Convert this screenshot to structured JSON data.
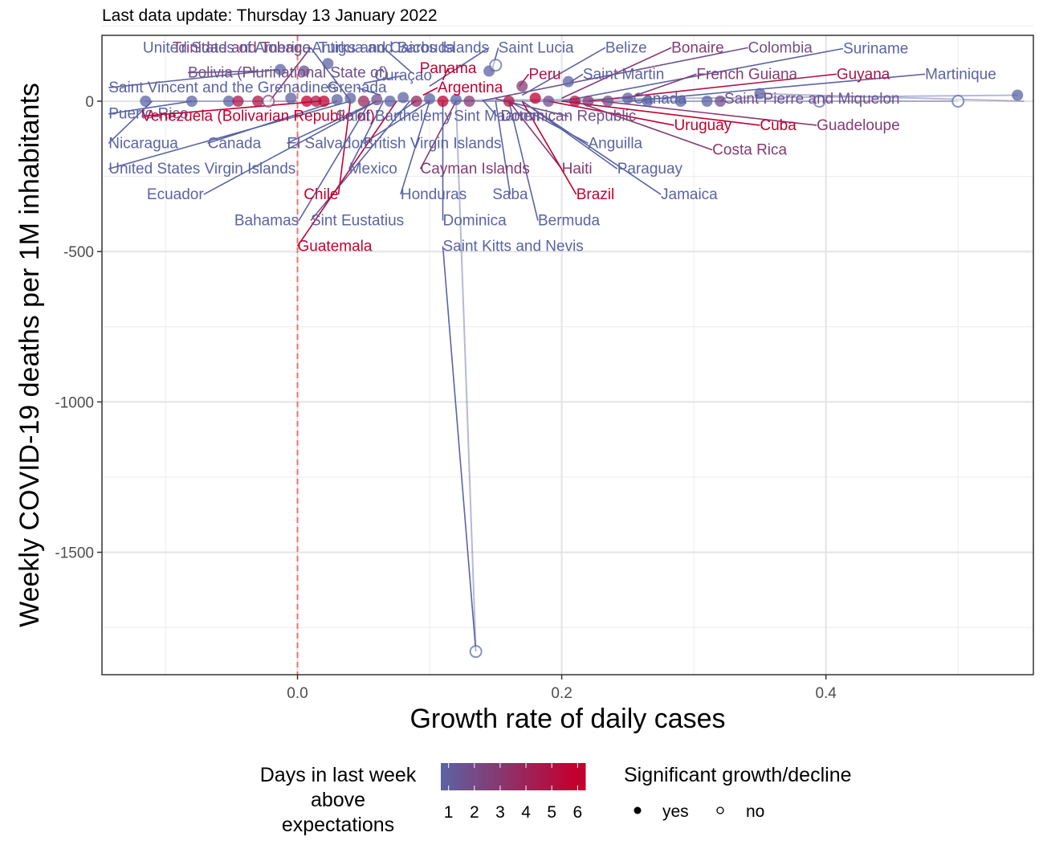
{
  "subtitle": "Last data update: Thursday 13 January 2022",
  "chart_data": {
    "type": "scatter",
    "xlabel": "Growth rate of daily cases",
    "ylabel": "Weekly COVID-19 deaths per 1M inhabitants",
    "xlim": [
      -0.148,
      0.557
    ],
    "ylim": [
      -1907,
      219
    ],
    "x_ticks": [
      0.0,
      0.2,
      0.4
    ],
    "x_tick_labels": [
      "0.0",
      "0.2",
      "0.4"
    ],
    "y_ticks": [
      0,
      -500,
      -1000,
      -1500
    ],
    "y_tick_labels": [
      "0",
      "-500",
      "-1000",
      "-1500"
    ],
    "reference_line_x": 0,
    "grid": true,
    "colors": {
      "low": "#5b63a3",
      "high": "#c20030",
      "refline": "#e8736b",
      "grid": "#ebebeb",
      "panel_border": "#333333"
    },
    "legend": {
      "color_title": [
        "Days in last week",
        "above",
        "expectations"
      ],
      "color_labels": [
        "1",
        "2",
        "3",
        "4",
        "5",
        "6"
      ],
      "shape_title": "Significant growth/decline",
      "shape_labels": [
        "yes",
        "no"
      ],
      "position": "bottom"
    },
    "points": [
      {
        "name": "Trinidad and Tobago",
        "x": -0.021,
        "y": 0,
        "days": 3,
        "sig": false,
        "lx": 0.01,
        "ly": 178,
        "anchor": "end"
      },
      {
        "name": "United States of America",
        "x": 0.04,
        "y": 2,
        "days": 1,
        "sig": true,
        "lx": 0.01,
        "ly": 178,
        "anchor": "end"
      },
      {
        "name": "Antigua and Barbuda",
        "x": 0.087,
        "y": 93,
        "days": 1,
        "sig": false,
        "lx": 0.065,
        "ly": 178,
        "anchor": "middle"
      },
      {
        "name": "Turks and Caicos Islands",
        "x": 0.1,
        "y": 50,
        "days": 1,
        "sig": false,
        "lx": 0.145,
        "ly": 178,
        "anchor": "end"
      },
      {
        "name": "Saint Lucia",
        "x": 0.147,
        "y": 100,
        "days": 1,
        "sig": true,
        "lx": 0.152,
        "ly": 178,
        "anchor": "start"
      },
      {
        "name": "Belize",
        "x": 0.17,
        "y": 20,
        "days": 1,
        "sig": true,
        "lx": 0.233,
        "ly": 178,
        "anchor": "start"
      },
      {
        "name": "Bonaire",
        "x": 0.2,
        "y": 10,
        "days": 3,
        "sig": false,
        "lx": 0.283,
        "ly": 178,
        "anchor": "start"
      },
      {
        "name": "Colombia",
        "x": 0.14,
        "y": 2,
        "days": 2,
        "sig": true,
        "lx": 0.341,
        "ly": 178,
        "anchor": "start"
      },
      {
        "name": "Suriname",
        "x": 0.2,
        "y": 0,
        "days": 1,
        "sig": true,
        "lx": 0.413,
        "ly": 175,
        "anchor": "start"
      },
      {
        "name": "Bolivia (Plurinational State of)",
        "x": -0.03,
        "y": 100,
        "days": 2,
        "sig": false,
        "lx": -0.083,
        "ly": 95,
        "anchor": "start"
      },
      {
        "name": "Curaçao",
        "x": 0.05,
        "y": 60,
        "days": 1,
        "sig": true,
        "lx": 0.08,
        "ly": 85,
        "anchor": "middle"
      },
      {
        "name": "Panama",
        "x": 0.11,
        "y": 70,
        "days": 6,
        "sig": true,
        "lx": 0.114,
        "ly": 110,
        "anchor": "middle"
      },
      {
        "name": "Peru",
        "x": 0.168,
        "y": 50,
        "days": 5,
        "sig": true,
        "lx": 0.175,
        "ly": 90,
        "anchor": "start"
      },
      {
        "name": "Saint Martin",
        "x": 0.207,
        "y": 65,
        "days": 1,
        "sig": true,
        "lx": 0.216,
        "ly": 90,
        "anchor": "start"
      },
      {
        "name": "French Guiana",
        "x": 0.25,
        "y": 10,
        "days": 3,
        "sig": true,
        "lx": 0.302,
        "ly": 90,
        "anchor": "start"
      },
      {
        "name": "Guyana",
        "x": 0.22,
        "y": 0,
        "days": 5,
        "sig": true,
        "lx": 0.408,
        "ly": 90,
        "anchor": "start"
      },
      {
        "name": "Martinique",
        "x": 0.25,
        "y": 0,
        "days": 1,
        "sig": true,
        "lx": 0.475,
        "ly": 90,
        "anchor": "start"
      },
      {
        "name": "Saint Vincent and the Grenadines",
        "x": -0.015,
        "y": 105,
        "days": 1,
        "sig": true,
        "lx": -0.143,
        "ly": 45,
        "anchor": "start"
      },
      {
        "name": "Grenada",
        "x": 0.063,
        "y": 20,
        "days": 1,
        "sig": true,
        "lx": 0.045,
        "ly": 45,
        "anchor": "middle"
      },
      {
        "name": "Argentina",
        "x": 0.095,
        "y": 20,
        "days": 6,
        "sig": true,
        "lx": 0.106,
        "ly": 45,
        "anchor": "start"
      },
      {
        "name": "Canada",
        "x": 0.243,
        "y": 12,
        "days": 1,
        "sig": true,
        "lx": 0.254,
        "ly": 8,
        "anchor": "start"
      },
      {
        "name": "Saint Pierre and Miquelon",
        "x": 0.32,
        "y": 0,
        "days": 2,
        "sig": true,
        "lx": 0.323,
        "ly": 8,
        "anchor": "start"
      },
      {
        "name": "Puerto Rico",
        "x": -0.08,
        "y": 0,
        "days": 1,
        "sig": true,
        "lx": -0.143,
        "ly": -42,
        "anchor": "start"
      },
      {
        "name": "Venezuela (Bolivarian Republic of)",
        "x": 0.017,
        "y": 0,
        "days": 6,
        "sig": true,
        "lx": -0.118,
        "ly": -50,
        "anchor": "start"
      },
      {
        "name": "Saint Barthélemy",
        "x": 0.09,
        "y": 2,
        "days": 1,
        "sig": true,
        "lx": 0.073,
        "ly": -50,
        "anchor": "middle"
      },
      {
        "name": "Sint Maarten",
        "x": 0.14,
        "y": 5,
        "days": 1,
        "sig": true,
        "lx": 0.151,
        "ly": -50,
        "anchor": "middle"
      },
      {
        "name": "Dominican Republic",
        "x": 0.15,
        "y": 8,
        "days": 2,
        "sig": true,
        "lx": 0.205,
        "ly": -50,
        "anchor": "middle"
      },
      {
        "name": "Uruguay",
        "x": 0.19,
        "y": 0,
        "days": 6,
        "sig": true,
        "lx": 0.285,
        "ly": -80,
        "anchor": "start"
      },
      {
        "name": "Cuba",
        "x": 0.2,
        "y": 0,
        "days": 6,
        "sig": true,
        "lx": 0.35,
        "ly": -80,
        "anchor": "start"
      },
      {
        "name": "Guadeloupe",
        "x": 0.23,
        "y": 0,
        "days": 3,
        "sig": true,
        "lx": 0.393,
        "ly": -80,
        "anchor": "start"
      },
      {
        "name": "Nicaragua",
        "x": -0.11,
        "y": 0,
        "days": 1,
        "sig": true,
        "lx": -0.143,
        "ly": -140,
        "anchor": "start"
      },
      {
        "name": "Canada",
        "x": 0.03,
        "y": 0,
        "days": 1,
        "sig": true,
        "lx": -0.068,
        "ly": -140,
        "anchor": "start"
      },
      {
        "name": "El Salvador",
        "x": 0.06,
        "y": 0,
        "days": 1,
        "sig": true,
        "lx": -0.008,
        "ly": -140,
        "anchor": "start"
      },
      {
        "name": "British Virgin Islands",
        "x": 0.1,
        "y": 0,
        "days": 1,
        "sig": true,
        "lx": 0.05,
        "ly": -140,
        "anchor": "start"
      },
      {
        "name": "Anguilla",
        "x": 0.16,
        "y": 0,
        "days": 1,
        "sig": true,
        "lx": 0.22,
        "ly": -140,
        "anchor": "start"
      },
      {
        "name": "Costa Rica",
        "x": 0.21,
        "y": 0,
        "days": 3,
        "sig": true,
        "lx": 0.314,
        "ly": -162,
        "anchor": "start"
      },
      {
        "name": "United States Virgin Islands",
        "x": 0.04,
        "y": 0,
        "days": 1,
        "sig": true,
        "lx": -0.143,
        "ly": -225,
        "anchor": "start"
      },
      {
        "name": "Mexico",
        "x": 0.065,
        "y": 0,
        "days": 1,
        "sig": true,
        "lx": 0.039,
        "ly": -225,
        "anchor": "start"
      },
      {
        "name": "Cayman Islands",
        "x": 0.12,
        "y": 0,
        "days": 3,
        "sig": true,
        "lx": 0.093,
        "ly": -225,
        "anchor": "start"
      },
      {
        "name": "Haiti",
        "x": 0.16,
        "y": 0,
        "days": 3,
        "sig": true,
        "lx": 0.2,
        "ly": -225,
        "anchor": "start"
      },
      {
        "name": "Paraguay",
        "x": 0.17,
        "y": 0,
        "days": 1,
        "sig": true,
        "lx": 0.242,
        "ly": -225,
        "anchor": "start"
      },
      {
        "name": "Ecuador",
        "x": 0.06,
        "y": 0,
        "days": 1,
        "sig": true,
        "lx": -0.071,
        "ly": -310,
        "anchor": "end"
      },
      {
        "name": "Chile",
        "x": 0.04,
        "y": 0,
        "days": 6,
        "sig": true,
        "lx": 0.031,
        "ly": -310,
        "anchor": "end"
      },
      {
        "name": "Honduras",
        "x": 0.1,
        "y": 0,
        "days": 1,
        "sig": true,
        "lx": 0.078,
        "ly": -310,
        "anchor": "start"
      },
      {
        "name": "Saba",
        "x": 0.15,
        "y": 0,
        "days": 1,
        "sig": true,
        "lx": 0.161,
        "ly": -310,
        "anchor": "middle"
      },
      {
        "name": "Brazil",
        "x": 0.17,
        "y": 0,
        "days": 6,
        "sig": true,
        "lx": 0.211,
        "ly": -310,
        "anchor": "start"
      },
      {
        "name": "Jamaica",
        "x": 0.17,
        "y": 0,
        "days": 1,
        "sig": true,
        "lx": 0.275,
        "ly": -310,
        "anchor": "start"
      },
      {
        "name": "Bahamas",
        "x": 0.055,
        "y": 0,
        "days": 1,
        "sig": true,
        "lx": 0.001,
        "ly": -397,
        "anchor": "end"
      },
      {
        "name": "Sint Eustatius",
        "x": 0.085,
        "y": 0,
        "days": 1,
        "sig": true,
        "lx": 0.01,
        "ly": -397,
        "anchor": "start"
      },
      {
        "name": "Dominica",
        "x": 0.11,
        "y": 0,
        "days": 1,
        "sig": true,
        "lx": 0.11,
        "ly": -397,
        "anchor": "start"
      },
      {
        "name": "Bermuda",
        "x": 0.16,
        "y": 0,
        "days": 1,
        "sig": true,
        "lx": 0.182,
        "ly": -397,
        "anchor": "start"
      },
      {
        "name": "Guatemala",
        "x": 0.075,
        "y": 0,
        "days": 6,
        "sig": true,
        "lx": 0.0,
        "ly": -482,
        "anchor": "start"
      },
      {
        "name": "Saint Kitts and Nevis",
        "x": 0.135,
        "y": -1830,
        "days": 1,
        "sig": false,
        "lx": 0.11,
        "ly": -482,
        "anchor": "start"
      }
    ],
    "tails": [
      {
        "x0": -0.115,
        "y0": 0,
        "x1": 0.0,
        "y1": 0,
        "days": 1
      },
      {
        "x0": 0.06,
        "y0": 0,
        "x1": 0.545,
        "y1": 20,
        "days": 1
      },
      {
        "x0": 0.35,
        "y0": 25,
        "x1": 0.55,
        "y1": 0,
        "days": 1
      },
      {
        "x0": 0.12,
        "y0": 0,
        "x1": 0.5,
        "y1": 0,
        "days": 1
      },
      {
        "x0": 0.135,
        "y0": -1830,
        "x1": 0.12,
        "y1": 0,
        "days": 1
      }
    ],
    "scatter_extra": [
      {
        "x": -0.115,
        "y": 0,
        "days": 1,
        "sig": true
      },
      {
        "x": -0.08,
        "y": 0,
        "days": 1,
        "sig": true
      },
      {
        "x": -0.052,
        "y": 0,
        "days": 1,
        "sig": true
      },
      {
        "x": -0.045,
        "y": 0,
        "days": 5,
        "sig": true
      },
      {
        "x": -0.03,
        "y": 0,
        "days": 5,
        "sig": true
      },
      {
        "x": -0.022,
        "y": 0,
        "days": 3,
        "sig": false
      },
      {
        "x": -0.013,
        "y": 105,
        "days": 1,
        "sig": true
      },
      {
        "x": 0.023,
        "y": 125,
        "days": 1,
        "sig": true
      },
      {
        "x": 0.005,
        "y": 100,
        "days": 2,
        "sig": true
      },
      {
        "x": -0.005,
        "y": 10,
        "days": 1,
        "sig": true
      },
      {
        "x": 0.007,
        "y": 0,
        "days": 6,
        "sig": true
      },
      {
        "x": 0.014,
        "y": 0,
        "days": 5,
        "sig": true
      },
      {
        "x": 0.02,
        "y": 0,
        "days": 6,
        "sig": true
      },
      {
        "x": 0.03,
        "y": 5,
        "days": 1,
        "sig": true
      },
      {
        "x": 0.04,
        "y": 10,
        "days": 1,
        "sig": true
      },
      {
        "x": 0.05,
        "y": 0,
        "days": 4,
        "sig": true
      },
      {
        "x": 0.06,
        "y": 5,
        "days": 2,
        "sig": true
      },
      {
        "x": 0.07,
        "y": 0,
        "days": 1,
        "sig": true
      },
      {
        "x": 0.08,
        "y": 12,
        "days": 1,
        "sig": true
      },
      {
        "x": 0.09,
        "y": 0,
        "days": 4,
        "sig": true
      },
      {
        "x": 0.1,
        "y": 8,
        "days": 1,
        "sig": true
      },
      {
        "x": 0.11,
        "y": 0,
        "days": 6,
        "sig": true
      },
      {
        "x": 0.12,
        "y": 5,
        "days": 1,
        "sig": true
      },
      {
        "x": 0.13,
        "y": 0,
        "days": 3,
        "sig": true
      },
      {
        "x": 0.145,
        "y": 100,
        "days": 1,
        "sig": true
      },
      {
        "x": 0.15,
        "y": 120,
        "days": 1,
        "sig": false
      },
      {
        "x": 0.16,
        "y": 0,
        "days": 5,
        "sig": true
      },
      {
        "x": 0.17,
        "y": 50,
        "days": 3,
        "sig": true
      },
      {
        "x": 0.18,
        "y": 10,
        "days": 6,
        "sig": true
      },
      {
        "x": 0.19,
        "y": 0,
        "days": 2,
        "sig": true
      },
      {
        "x": 0.205,
        "y": 65,
        "days": 1,
        "sig": true
      },
      {
        "x": 0.21,
        "y": 0,
        "days": 5,
        "sig": true
      },
      {
        "x": 0.22,
        "y": 0,
        "days": 3,
        "sig": true
      },
      {
        "x": 0.235,
        "y": 0,
        "days": 2,
        "sig": true
      },
      {
        "x": 0.25,
        "y": 10,
        "days": 1,
        "sig": true
      },
      {
        "x": 0.265,
        "y": 0,
        "days": 1,
        "sig": true
      },
      {
        "x": 0.29,
        "y": 0,
        "days": 1,
        "sig": true
      },
      {
        "x": 0.31,
        "y": 0,
        "days": 1,
        "sig": true
      },
      {
        "x": 0.32,
        "y": 0,
        "days": 2,
        "sig": true
      },
      {
        "x": 0.35,
        "y": 25,
        "days": 1,
        "sig": true
      },
      {
        "x": 0.395,
        "y": 0,
        "days": 1,
        "sig": false
      },
      {
        "x": 0.5,
        "y": 0,
        "days": 1,
        "sig": false
      },
      {
        "x": 0.545,
        "y": 20,
        "days": 1,
        "sig": true
      },
      {
        "x": 0.135,
        "y": -1830,
        "days": 1,
        "sig": false
      }
    ]
  }
}
